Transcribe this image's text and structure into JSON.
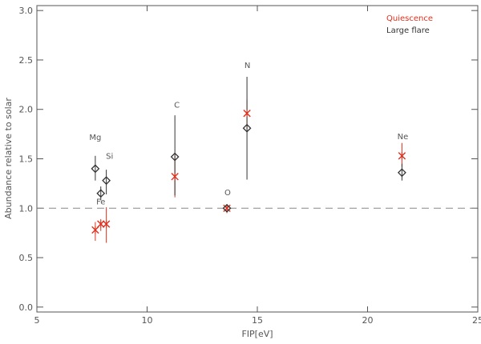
{
  "chart_data": {
    "type": "scatter",
    "title": "",
    "xlabel": "FIP[eV]",
    "ylabel": "Abundance relative to solar",
    "xlim": [
      5,
      25
    ],
    "ylim": [
      -0.05,
      3.05
    ],
    "xticks": [
      5,
      10,
      15,
      20,
      25
    ],
    "xtick_labels": [
      "5",
      "10",
      "15",
      "20",
      "25"
    ],
    "yticks": [
      0.0,
      0.5,
      1.0,
      1.5,
      2.0,
      2.5,
      3.0
    ],
    "ytick_labels": [
      "0.0",
      "0.5",
      "1.0",
      "1.5",
      "2.0",
      "2.5",
      "3.0"
    ],
    "reference_line": {
      "y": 1.0,
      "style": "dashed"
    },
    "legend": {
      "position": "top-right",
      "entries": [
        {
          "label": "Quiescence",
          "color": "#e0301e"
        },
        {
          "label": "Large flare",
          "color": "#333333"
        }
      ]
    },
    "series": [
      {
        "name": "Quiescence",
        "marker": "x",
        "color": "#e0301e",
        "points": [
          {
            "x": 7.65,
            "y": 0.78,
            "low": 0.67,
            "high": 0.86
          },
          {
            "x": 7.9,
            "y": 0.84,
            "low": 0.77,
            "high": 0.89
          },
          {
            "x": 8.15,
            "y": 0.84,
            "low": 0.65,
            "high": 1.01
          },
          {
            "x": 11.26,
            "y": 1.32,
            "low": 1.11,
            "high": 1.53
          },
          {
            "x": 13.62,
            "y": 1.0,
            "low": 0.95,
            "high": 1.04
          },
          {
            "x": 14.53,
            "y": 1.96,
            "low": 1.8,
            "high": 2.1
          },
          {
            "x": 21.56,
            "y": 1.53,
            "low": 1.42,
            "high": 1.66
          }
        ]
      },
      {
        "name": "Large flare",
        "marker": "diamond",
        "color": "#333333",
        "points": [
          {
            "x": 7.65,
            "y": 1.4,
            "low": 1.28,
            "high": 1.53
          },
          {
            "x": 7.9,
            "y": 1.15,
            "low": 1.08,
            "high": 1.22
          },
          {
            "x": 8.15,
            "y": 1.28,
            "low": 1.14,
            "high": 1.39
          },
          {
            "x": 11.26,
            "y": 1.52,
            "low": 1.13,
            "high": 1.94
          },
          {
            "x": 13.62,
            "y": 1.0,
            "low": 0.96,
            "high": 1.04
          },
          {
            "x": 14.53,
            "y": 1.81,
            "low": 1.29,
            "high": 2.33
          },
          {
            "x": 21.56,
            "y": 1.36,
            "low": 1.28,
            "high": 1.45
          }
        ]
      }
    ],
    "annotations": [
      {
        "text": "Mg",
        "x": 7.65,
        "y": 1.69
      },
      {
        "text": "Si",
        "x": 8.3,
        "y": 1.5
      },
      {
        "text": "Fe",
        "x": 7.9,
        "y": 1.04
      },
      {
        "text": "C",
        "x": 11.35,
        "y": 2.02
      },
      {
        "text": "O",
        "x": 13.65,
        "y": 1.13
      },
      {
        "text": "N",
        "x": 14.55,
        "y": 2.42
      },
      {
        "text": "Ne",
        "x": 21.6,
        "y": 1.7
      }
    ]
  }
}
